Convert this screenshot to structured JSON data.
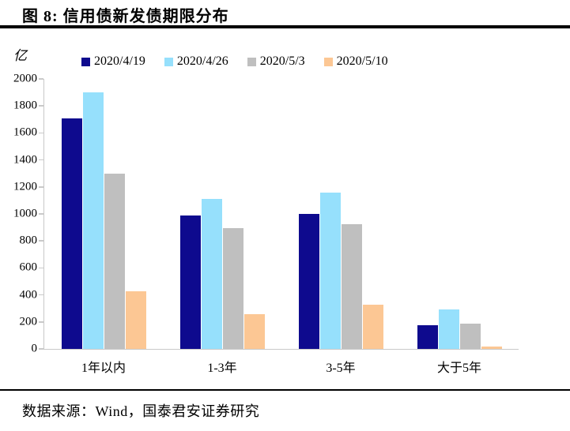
{
  "header": {
    "title": "图 8:  信用债新发债期限分布"
  },
  "footer": {
    "source": "数据来源：Wind，国泰君安证券研究"
  },
  "chart_data": {
    "type": "bar",
    "title": "信用债新发债期限分布",
    "unit": "亿",
    "categories": [
      "1年以内",
      "1-3年",
      "3-5年",
      "大于5年"
    ],
    "series": [
      {
        "name": "2020/4/19",
        "color": "#0E0A8E",
        "values": [
          1710,
          990,
          1000,
          175
        ]
      },
      {
        "name": "2020/4/26",
        "color": "#96E0FC",
        "values": [
          1900,
          1110,
          1160,
          290
        ]
      },
      {
        "name": "2020/5/3",
        "color": "#BFBFBF",
        "values": [
          1300,
          895,
          925,
          190
        ]
      },
      {
        "name": "2020/5/10",
        "color": "#FCC794",
        "values": [
          425,
          260,
          330,
          20
        ]
      }
    ],
    "ylim": [
      0,
      2000
    ],
    "ytick_step": 200,
    "legend_position": "top",
    "grid": false,
    "axis_color": "#c9c9c9"
  }
}
